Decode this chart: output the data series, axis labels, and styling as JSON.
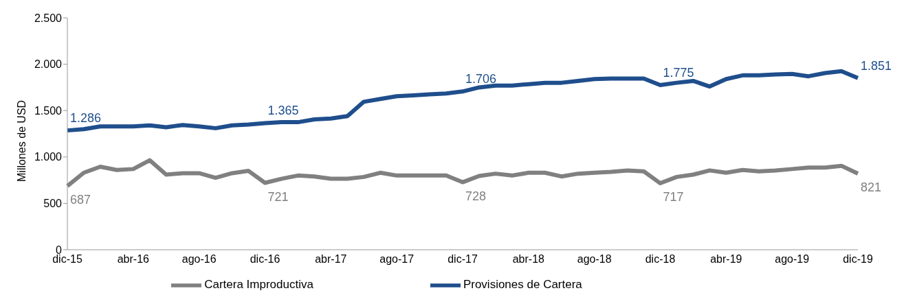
{
  "chart_data": {
    "type": "line",
    "ylabel": "Millones de USD",
    "categories": [
      "dic-15",
      null,
      null,
      null,
      "abr-16",
      null,
      null,
      null,
      "ago-16",
      null,
      null,
      null,
      "dic-16",
      null,
      null,
      null,
      "abr-17",
      null,
      null,
      null,
      "ago-17",
      null,
      null,
      null,
      "dic-17",
      null,
      null,
      null,
      "abr-18",
      null,
      null,
      null,
      "ago-18",
      null,
      null,
      null,
      "dic-18",
      null,
      null,
      null,
      "abr-19",
      null,
      null,
      null,
      "ago-19",
      null,
      null,
      null,
      "dic-19"
    ],
    "series": [
      {
        "name": "Cartera Improductiva",
        "color": "#808080",
        "values": [
          687,
          830,
          895,
          860,
          870,
          965,
          810,
          825,
          825,
          775,
          825,
          850,
          721,
          765,
          800,
          790,
          765,
          765,
          785,
          830,
          800,
          800,
          800,
          800,
          728,
          795,
          820,
          800,
          830,
          830,
          790,
          820,
          830,
          840,
          855,
          845,
          717,
          785,
          810,
          855,
          830,
          860,
          845,
          855,
          870,
          885,
          885,
          905,
          821
        ],
        "value_labels": [
          "687",
          null,
          null,
          null,
          null,
          null,
          null,
          null,
          null,
          null,
          null,
          null,
          "721",
          null,
          null,
          null,
          null,
          null,
          null,
          null,
          null,
          null,
          null,
          null,
          "728",
          null,
          null,
          null,
          null,
          null,
          null,
          null,
          null,
          null,
          null,
          null,
          "717",
          null,
          null,
          null,
          null,
          null,
          null,
          null,
          null,
          null,
          null,
          null,
          "821"
        ]
      },
      {
        "name": "Provisiones de Cartera",
        "color": "#1f4e8c",
        "values": [
          1286,
          1300,
          1330,
          1330,
          1330,
          1340,
          1320,
          1345,
          1330,
          1310,
          1340,
          1350,
          1365,
          1375,
          1375,
          1405,
          1415,
          1440,
          1595,
          1625,
          1655,
          1665,
          1675,
          1685,
          1706,
          1750,
          1770,
          1770,
          1785,
          1800,
          1800,
          1820,
          1840,
          1845,
          1845,
          1845,
          1775,
          1800,
          1820,
          1760,
          1840,
          1880,
          1880,
          1890,
          1895,
          1870,
          1905,
          1925,
          1851
        ],
        "value_labels": [
          "1.286",
          null,
          null,
          null,
          null,
          null,
          null,
          null,
          null,
          null,
          null,
          null,
          "1.365",
          null,
          null,
          null,
          null,
          null,
          null,
          null,
          null,
          null,
          null,
          null,
          "1.706",
          null,
          null,
          null,
          null,
          null,
          null,
          null,
          null,
          null,
          null,
          null,
          "1.775",
          null,
          null,
          null,
          null,
          null,
          null,
          null,
          null,
          null,
          null,
          null,
          "1.851"
        ]
      }
    ],
    "ylim": [
      0,
      2500
    ],
    "yticks": [
      0,
      500,
      {
        "value": 1000,
        "label": "1.000"
      },
      {
        "value": 1500,
        "label": "1.500"
      },
      {
        "value": 2000,
        "label": "2.000"
      },
      {
        "value": 2500,
        "label": "2.500"
      }
    ],
    "grid": false,
    "legend": "bottom",
    "marker": "none",
    "line_style": "solid"
  }
}
